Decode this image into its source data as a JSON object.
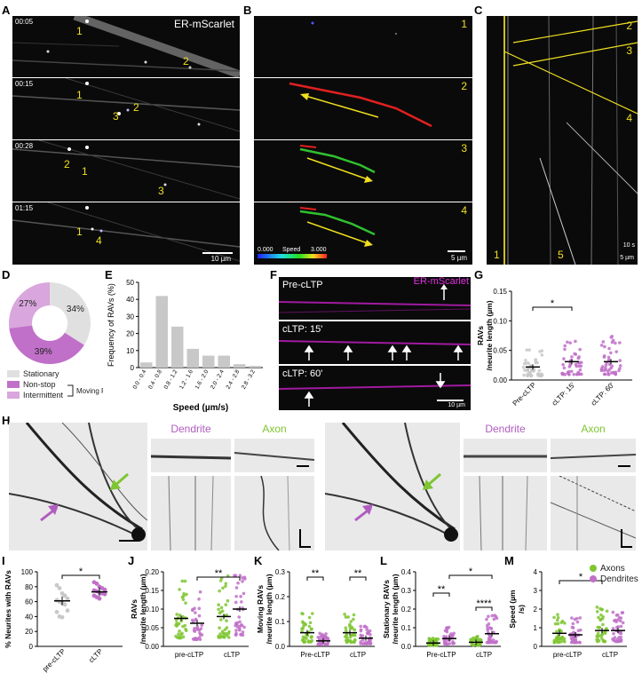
{
  "panels": {
    "A": "A",
    "B": "B",
    "C": "C",
    "D": "D",
    "E": "E",
    "F": "F",
    "G": "G",
    "H": "H",
    "I": "I",
    "J": "J",
    "K": "K",
    "L": "L",
    "M": "M"
  },
  "panelA": {
    "channel": "ER-mScarlet",
    "times": [
      "00:05",
      "00:15",
      "00:28",
      "01:15"
    ],
    "frame_marks": [
      [
        "1",
        "2"
      ],
      [
        "1",
        "3",
        "2"
      ],
      [
        "2",
        "1",
        "3"
      ],
      [
        "1",
        "4"
      ]
    ],
    "scalebar": "10 µm"
  },
  "panelB": {
    "frame_numbers": [
      "1",
      "2",
      "3",
      "4"
    ],
    "speed_legend": {
      "min": "0.000",
      "label": "Speed",
      "max": "3.000"
    },
    "scalebar": "5 µm"
  },
  "panelC": {
    "numbers_right": [
      "2",
      "3",
      "4"
    ],
    "numbers_bottom": [
      "1",
      "5"
    ],
    "scale_time": "10 s",
    "scale_len": "5 µm"
  },
  "panelD": {
    "chart_data": {
      "type": "pie",
      "labels": [
        "Stationary",
        "Non-stop",
        "Intermittent"
      ],
      "values": [
        34,
        39,
        27
      ],
      "value_labels": [
        "34%",
        "39%",
        "27%"
      ],
      "colors": [
        "#e0e0e0",
        "#c070c8",
        "#d9a6dd"
      ],
      "group_label": "Moving RAVs"
    }
  },
  "panelE": {
    "chart_data": {
      "type": "bar",
      "categories": [
        "0.0 - 0.4",
        "0.4 - 0.8",
        "0.8 - 1.2",
        "1.2 - 1.6",
        "1.6 - 2.0",
        "2.0 - 2.4",
        "2.4 - 2.8",
        "2.8 - 3.2"
      ],
      "values": [
        3,
        42,
        24,
        11,
        7,
        7,
        2,
        1
      ],
      "ylabel": "Frequency of RAVs (%)",
      "xlabel": "Speed (µm/s)",
      "ylim": [
        0,
        50
      ],
      "yticks": [
        "0",
        "10",
        "20",
        "30",
        "40",
        "50"
      ]
    }
  },
  "panelF": {
    "channel": "ER-mScarlet",
    "rows": [
      "Pre-cLTP",
      "cLTP: 15'",
      "cLTP: 60'"
    ],
    "scalebar": "10 µm"
  },
  "panelG": {
    "chart_data": {
      "type": "scatter",
      "categories": [
        "Pre-cLTP",
        "cLTP: 15'",
        "cLTP: 60'"
      ],
      "means": [
        0.022,
        0.031,
        0.031
      ],
      "ylabel": "RAVs /neurite length (µm)",
      "ylim": [
        0,
        0.15
      ],
      "yticks": [
        "0.00",
        "0.05",
        "0.10",
        "0.15"
      ],
      "significance": "*",
      "colors": [
        "#c8c8c8",
        "#c070c8",
        "#c070c8"
      ]
    }
  },
  "panelH": {
    "labels": [
      "Dendrite",
      "Axon",
      "Dendrite",
      "Axon"
    ]
  },
  "panelI": {
    "chart_data": {
      "type": "scatter",
      "categories": [
        "pre-cLTP",
        "cLTP"
      ],
      "means": [
        61,
        73
      ],
      "ylabel": "% Neurites with RAVs",
      "ylim": [
        0,
        100
      ],
      "yticks": [
        "0",
        "20",
        "40",
        "60",
        "80",
        "100"
      ],
      "significance": "*",
      "points": [
        [
          82,
          78,
          71,
          68,
          64,
          62,
          60,
          58,
          56,
          48,
          46,
          40,
          39
        ],
        [
          86,
          84,
          80,
          78,
          76,
          75,
          74,
          72,
          71,
          70,
          68,
          66,
          64
        ]
      ],
      "colors": [
        "#c8c8c8",
        "#c070c8"
      ]
    }
  },
  "panelJ": {
    "chart_data": {
      "type": "scatter",
      "categories": [
        "pre-cLTP",
        "cLTP"
      ],
      "series": [
        {
          "name": "Axons",
          "means": [
            0.075,
            0.08
          ]
        },
        {
          "name": "Dendrites",
          "means": [
            0.062,
            0.1
          ]
        }
      ],
      "ylabel": "RAVs /neurite length (µm)",
      "ylim": [
        0,
        0.2
      ],
      "yticks": [
        "0.00",
        "0.05",
        "0.10",
        "0.15",
        "0.20"
      ],
      "significance": "**"
    }
  },
  "panelK": {
    "chart_data": {
      "type": "scatter",
      "categories": [
        "Pre-cLTP",
        "cLTP"
      ],
      "series": [
        {
          "name": "Axons",
          "means": [
            0.055,
            0.055
          ]
        },
        {
          "name": "Dendrites",
          "means": [
            0.022,
            0.033
          ]
        }
      ],
      "ylabel": "Moving RAVs /neurite length (µm)",
      "ylim": [
        0,
        0.3
      ],
      "yticks": [
        "0.0",
        "0.1",
        "0.2",
        "0.3"
      ],
      "significance": [
        "**",
        "**"
      ]
    }
  },
  "panelL": {
    "chart_data": {
      "type": "scatter",
      "categories": [
        "Pre-cLTP",
        "cLTP"
      ],
      "series": [
        {
          "name": "Axons",
          "means": [
            0.018,
            0.022
          ]
        },
        {
          "name": "Dendrites",
          "means": [
            0.042,
            0.068
          ]
        }
      ],
      "ylabel": "Stationary RAVs /neurite length (µm)",
      "ylim": [
        0,
        0.4
      ],
      "yticks": [
        "0.0",
        "0.1",
        "0.2",
        "0.3",
        "0.4"
      ],
      "significance": [
        "**",
        "*",
        "****"
      ]
    }
  },
  "panelM": {
    "chart_data": {
      "type": "scatter",
      "categories": [
        "pre-cLTP",
        "cLTP"
      ],
      "series": [
        {
          "name": "Axons",
          "means": [
            0.7,
            0.85
          ]
        },
        {
          "name": "Dendrites",
          "means": [
            0.62,
            0.85
          ]
        }
      ],
      "ylabel": "Speed (µm/s)",
      "ylim": [
        0,
        4
      ],
      "yticks": [
        "0",
        "1",
        "2",
        "3",
        "4"
      ],
      "significance": "*",
      "legend": [
        "Axons",
        "Dendrites"
      ],
      "colors": [
        "#7ec631",
        "#c070c8"
      ]
    }
  }
}
